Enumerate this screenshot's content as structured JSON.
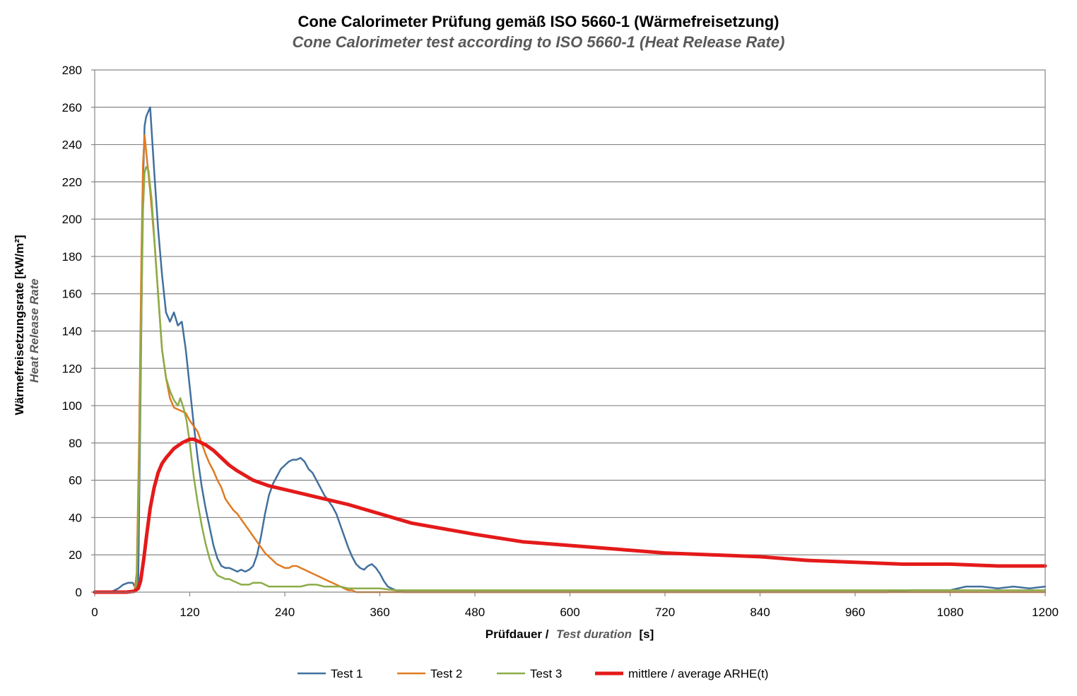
{
  "chart_data": {
    "type": "line",
    "title": "Cone Calorimeter Prüfung gemäß ISO 5660-1 (Wärmefreisetzung)",
    "subtitle": "Cone Calorimeter test according to ISO 5660-1 (Heat Release Rate)",
    "xlabel": {
      "prefix": "Prüfdauer /",
      "italic": "Test duration",
      "suffix": "[s]"
    },
    "ylabel": {
      "line1": "Wärmefreisetzungsrate  [kW/m²]",
      "line2": "Heat Release Rate"
    },
    "xlim": [
      0,
      1200
    ],
    "ylim": [
      0,
      280
    ],
    "xticks": [
      0,
      120,
      240,
      360,
      480,
      600,
      720,
      840,
      960,
      1080,
      1200
    ],
    "yticks": [
      0,
      20,
      40,
      60,
      80,
      100,
      120,
      140,
      160,
      180,
      200,
      220,
      240,
      260,
      280
    ],
    "grid": "horizontal",
    "legend_position": "bottom",
    "series": [
      {
        "name": "Test  1",
        "color": "#41709e",
        "x": [
          0,
          20,
          30,
          36,
          42,
          48,
          52,
          55,
          58,
          61,
          63,
          65,
          67,
          70,
          73,
          76,
          80,
          85,
          90,
          95,
          100,
          105,
          110,
          115,
          120,
          125,
          130,
          135,
          140,
          145,
          150,
          155,
          160,
          165,
          170,
          175,
          180,
          185,
          190,
          195,
          200,
          205,
          210,
          215,
          220,
          225,
          230,
          235,
          240,
          245,
          250,
          255,
          260,
          265,
          270,
          275,
          280,
          285,
          290,
          295,
          300,
          305,
          310,
          315,
          320,
          325,
          330,
          335,
          340,
          345,
          350,
          355,
          360,
          365,
          370,
          375,
          380,
          390,
          420,
          480,
          540,
          600,
          660,
          720,
          780,
          840,
          900,
          960,
          1000,
          1030,
          1060,
          1080,
          1100,
          1120,
          1140,
          1160,
          1180,
          1200
        ],
        "values": [
          0,
          0,
          2,
          4,
          5,
          5,
          2,
          5,
          110,
          220,
          250,
          255,
          257,
          260,
          240,
          220,
          195,
          170,
          150,
          145,
          150,
          143,
          145,
          130,
          110,
          90,
          72,
          57,
          45,
          35,
          25,
          18,
          14,
          13,
          13,
          12,
          11,
          12,
          11,
          12,
          14,
          20,
          30,
          42,
          52,
          58,
          62,
          66,
          68,
          70,
          71,
          71,
          72,
          70,
          66,
          64,
          60,
          56,
          52,
          49,
          46,
          42,
          36,
          30,
          24,
          19,
          15,
          13,
          12,
          14,
          15,
          13,
          10,
          6,
          3,
          2,
          1,
          0,
          0,
          0,
          0,
          0,
          0,
          0,
          0,
          0,
          0,
          0,
          0,
          1,
          1,
          1,
          3,
          3,
          2,
          3,
          2,
          3
        ]
      },
      {
        "name": "Test  2",
        "color": "#e07b21",
        "x": [
          0,
          40,
          50,
          53,
          56,
          59,
          61,
          63,
          66,
          70,
          75,
          80,
          85,
          90,
          95,
          100,
          105,
          110,
          115,
          120,
          125,
          130,
          135,
          140,
          145,
          150,
          155,
          160,
          165,
          170,
          175,
          180,
          185,
          190,
          195,
          200,
          205,
          210,
          215,
          220,
          225,
          230,
          235,
          240,
          245,
          250,
          255,
          260,
          265,
          270,
          275,
          280,
          285,
          290,
          295,
          300,
          305,
          310,
          315,
          320,
          325,
          330,
          335,
          340,
          345,
          350,
          360,
          420,
          480,
          540,
          600,
          660,
          720,
          780,
          840,
          900,
          960,
          1020,
          1080,
          1140,
          1200
        ],
        "values": [
          0,
          0,
          0,
          10,
          80,
          180,
          230,
          245,
          232,
          215,
          190,
          160,
          130,
          115,
          104,
          99,
          98,
          97,
          96,
          92,
          89,
          86,
          80,
          74,
          69,
          65,
          60,
          56,
          50,
          47,
          44,
          42,
          39,
          36,
          33,
          30,
          27,
          24,
          21,
          19,
          17,
          15,
          14,
          13,
          13,
          14,
          14,
          13,
          12,
          11,
          10,
          9,
          8,
          7,
          6,
          5,
          4,
          3,
          2,
          1,
          1,
          0,
          0,
          0,
          0,
          0,
          0,
          0,
          0,
          0,
          0,
          0,
          0,
          0,
          0,
          0,
          0,
          0,
          0,
          0,
          0
        ]
      },
      {
        "name": "Test  3",
        "color": "#8cac47",
        "x": [
          0,
          40,
          50,
          53,
          56,
          59,
          61,
          63,
          65,
          68,
          72,
          76,
          80,
          85,
          90,
          95,
          100,
          105,
          108,
          112,
          116,
          120,
          125,
          130,
          135,
          140,
          145,
          150,
          155,
          160,
          165,
          170,
          175,
          180,
          185,
          190,
          195,
          200,
          205,
          210,
          215,
          220,
          230,
          240,
          250,
          260,
          270,
          280,
          290,
          300,
          310,
          320,
          330,
          340,
          360,
          380,
          420,
          480,
          540,
          600,
          660,
          720,
          780,
          840,
          900,
          960,
          1020,
          1080,
          1140,
          1200
        ],
        "values": [
          0,
          0,
          0,
          5,
          60,
          150,
          205,
          225,
          228,
          226,
          210,
          185,
          160,
          130,
          115,
          108,
          103,
          100,
          104,
          99,
          92,
          80,
          62,
          48,
          36,
          26,
          18,
          12,
          9,
          8,
          7,
          7,
          6,
          5,
          4,
          4,
          4,
          5,
          5,
          5,
          4,
          3,
          3,
          3,
          3,
          3,
          4,
          4,
          3,
          3,
          3,
          2,
          2,
          2,
          2,
          1,
          1,
          1,
          1,
          1,
          1,
          1,
          1,
          1,
          1,
          1,
          1,
          1,
          1,
          1
        ]
      },
      {
        "name": "mittlere / average ARHE(t)",
        "color": "#e41a1a",
        "x": [
          0,
          40,
          50,
          55,
          58,
          62,
          66,
          70,
          75,
          80,
          85,
          90,
          100,
          110,
          120,
          125,
          130,
          140,
          150,
          160,
          170,
          180,
          200,
          220,
          240,
          260,
          280,
          300,
          320,
          360,
          400,
          480,
          540,
          600,
          660,
          720,
          780,
          840,
          900,
          960,
          1020,
          1080,
          1140,
          1200
        ],
        "values": [
          0,
          0,
          0.5,
          2,
          6,
          18,
          32,
          45,
          56,
          64,
          69,
          72,
          77,
          80,
          82,
          82,
          81,
          79,
          76,
          72,
          68,
          65,
          60,
          57,
          55,
          53,
          51,
          49,
          47,
          42,
          37,
          31,
          27,
          25,
          23,
          21,
          20,
          19,
          17,
          16,
          15,
          15,
          14,
          14
        ]
      }
    ]
  }
}
